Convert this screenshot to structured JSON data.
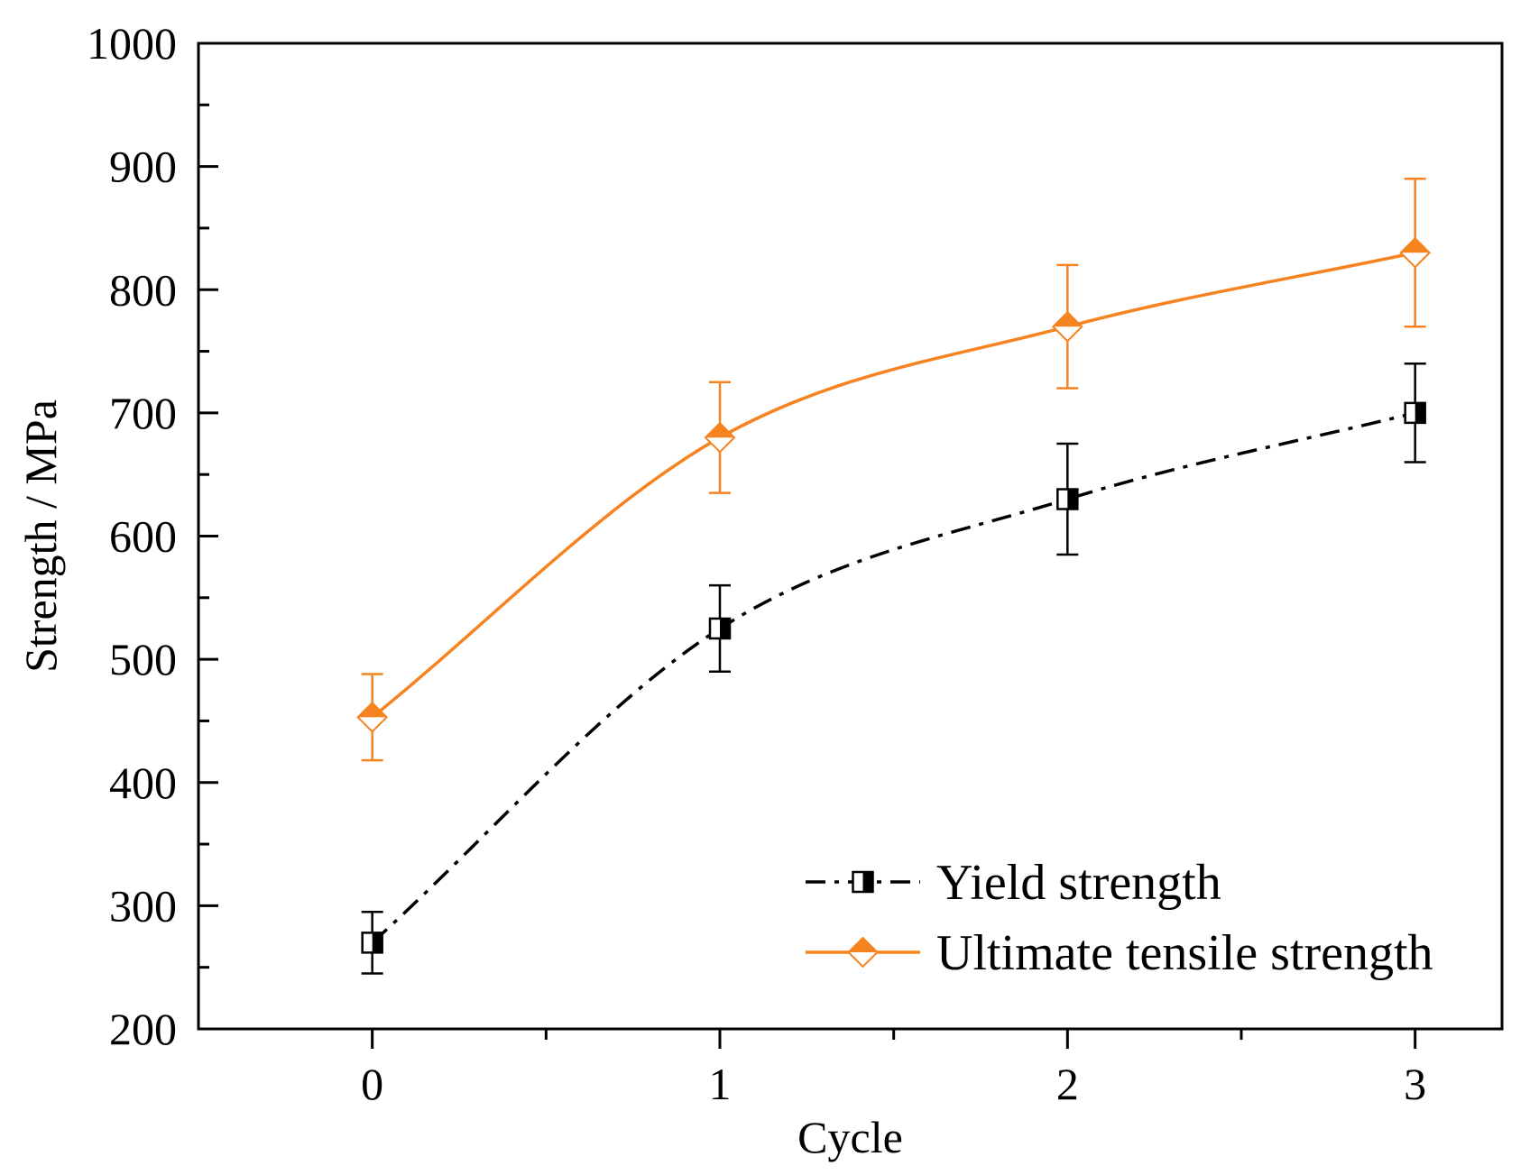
{
  "chart_data": {
    "type": "line",
    "title": "",
    "xlabel": "Cycle",
    "ylabel": "Strength / MPa",
    "x": [
      0,
      1,
      2,
      3
    ],
    "xlim": [
      -0.5,
      3.25
    ],
    "ylim": [
      200,
      1000
    ],
    "x_ticks": [
      "0",
      "1",
      "2",
      "3"
    ],
    "y_ticks": [
      "200",
      "300",
      "400",
      "500",
      "600",
      "700",
      "800",
      "900",
      "1000"
    ],
    "grid": false,
    "legend_position": "bottom-right",
    "series": [
      {
        "name": "Yield strength",
        "values": [
          270,
          525,
          630,
          700
        ],
        "error": [
          25,
          35,
          45,
          40
        ],
        "color": "#000000",
        "line_style": "dash-dot",
        "marker": "half-filled-square"
      },
      {
        "name": "Ultimate tensile strength",
        "values": [
          453,
          680,
          770,
          830
        ],
        "error": [
          35,
          45,
          50,
          60
        ],
        "color": "#f5831f",
        "line_style": "solid",
        "marker": "half-filled-diamond"
      }
    ]
  }
}
